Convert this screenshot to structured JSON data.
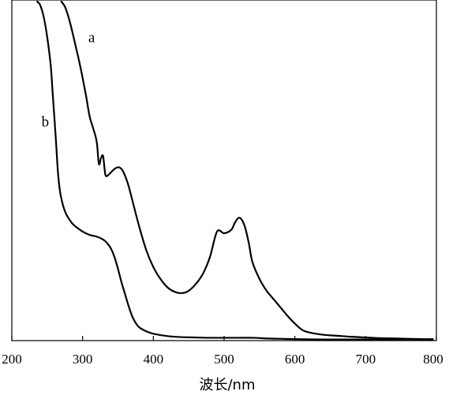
{
  "chart_data": {
    "type": "line",
    "title": "",
    "xlabel": "波长/nm",
    "ylabel": "",
    "xlim": [
      200,
      800
    ],
    "ylim": [
      0,
      1
    ],
    "grid": false,
    "xticks": [
      200,
      300,
      400,
      500,
      600,
      700,
      800
    ],
    "xtick_labels": [
      "200",
      "300",
      "400",
      "500",
      "600",
      "700",
      "800"
    ],
    "y_ticks_labeled": false,
    "series": [
      {
        "name": "a",
        "label_at": [
          308,
          0.88
        ],
        "x": [
          270,
          275,
          280,
          285,
          290,
          295,
          300,
          305,
          310,
          315,
          320,
          323,
          326,
          329,
          332,
          335,
          340,
          345,
          350,
          355,
          360,
          365,
          370,
          380,
          390,
          400,
          410,
          420,
          430,
          440,
          450,
          460,
          470,
          480,
          490,
          500,
          510,
          515,
          520,
          525,
          530,
          535,
          540,
          550,
          560,
          570,
          580,
          590,
          600,
          610,
          620,
          640,
          660,
          680,
          700,
          720,
          740,
          760,
          780,
          795
        ],
        "values": [
          1.0,
          0.985,
          0.955,
          0.915,
          0.87,
          0.825,
          0.775,
          0.72,
          0.66,
          0.625,
          0.585,
          0.52,
          0.537,
          0.543,
          0.49,
          0.485,
          0.495,
          0.505,
          0.51,
          0.505,
          0.485,
          0.455,
          0.415,
          0.335,
          0.265,
          0.215,
          0.18,
          0.155,
          0.142,
          0.138,
          0.145,
          0.165,
          0.195,
          0.245,
          0.32,
          0.315,
          0.325,
          0.345,
          0.36,
          0.355,
          0.33,
          0.285,
          0.23,
          0.18,
          0.145,
          0.12,
          0.095,
          0.07,
          0.048,
          0.03,
          0.022,
          0.015,
          0.012,
          0.009,
          0.007,
          0.005,
          0.004,
          0.003,
          0.002,
          0.002
        ]
      },
      {
        "name": "b",
        "label_at": [
          242,
          0.63
        ],
        "x": [
          236,
          240,
          245,
          250,
          255,
          258,
          262,
          265,
          268,
          272,
          276,
          280,
          285,
          290,
          300,
          310,
          320,
          330,
          335,
          340,
          345,
          350,
          355,
          360,
          365,
          370,
          375,
          380,
          390,
          400,
          420,
          440,
          460,
          480,
          500,
          520,
          540,
          560,
          580,
          600,
          640,
          680,
          720,
          760,
          795
        ],
        "values": [
          1.0,
          0.99,
          0.955,
          0.895,
          0.81,
          0.72,
          0.6,
          0.5,
          0.44,
          0.4,
          0.375,
          0.36,
          0.345,
          0.335,
          0.32,
          0.31,
          0.305,
          0.295,
          0.285,
          0.27,
          0.245,
          0.21,
          0.17,
          0.135,
          0.1,
          0.07,
          0.05,
          0.037,
          0.025,
          0.018,
          0.011,
          0.008,
          0.007,
          0.006,
          0.006,
          0.006,
          0.006,
          0.004,
          0.003,
          0.002,
          0.001,
          0.001,
          0.001,
          0.001,
          0.001
        ]
      }
    ]
  }
}
